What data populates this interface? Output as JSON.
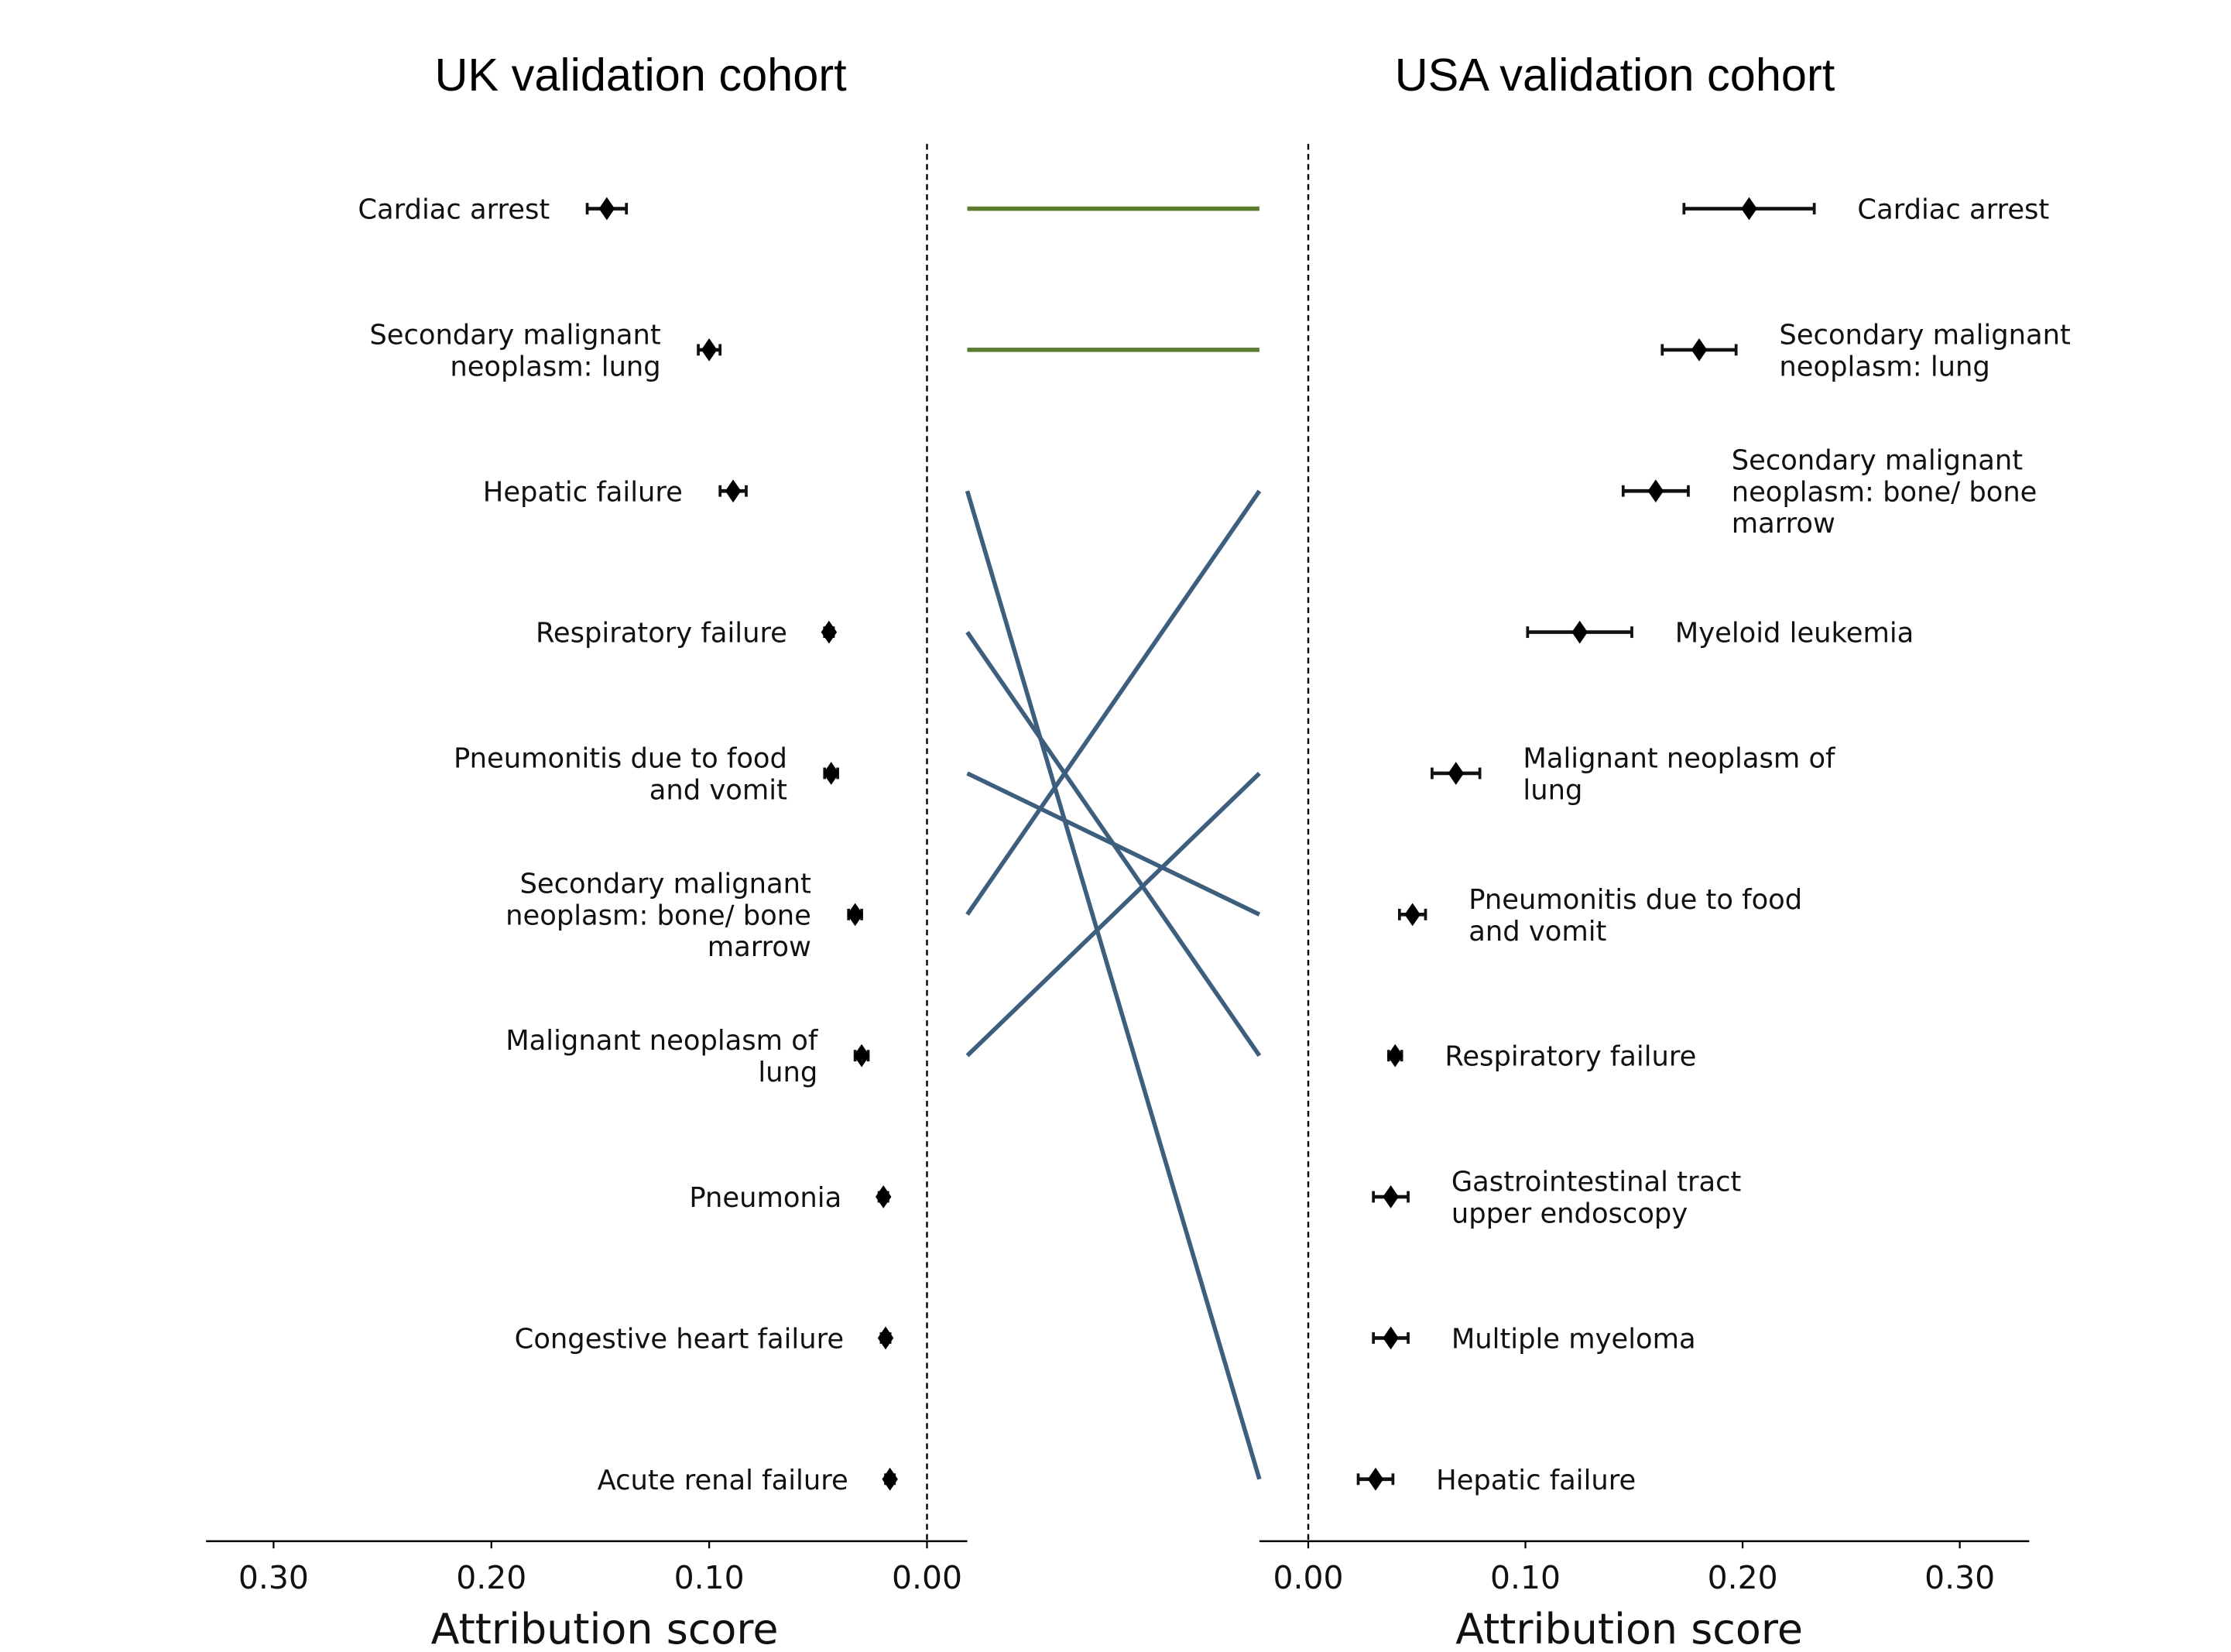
{
  "chart_data": [
    {
      "type": "scatter",
      "title": "UK validation cohort",
      "xlabel": "Attribution score",
      "xlim": [
        0.331,
        -0.0185
      ],
      "x_inverted": true,
      "xticks": [
        "0.30",
        "0.20",
        "0.10",
        "0.00"
      ],
      "xtick_values": [
        0.3,
        0.2,
        0.1,
        0.0
      ],
      "reference_line": 0.0,
      "grid": false,
      "categories": [
        "Cardiac arrest",
        "Secondary malignant\nneoplasm: lung",
        "Hepatic failure",
        "Respiratory failure",
        "Pneumonitis due to food\nand vomit",
        "Secondary malignant\nneoplasm: bone/ bone\nmarrow",
        "Malignant neoplasm of\nlung",
        "Pneumonia",
        "Congestive heart failure",
        "Acute renal failure"
      ],
      "values": [
        0.147,
        0.1,
        0.089,
        0.045,
        0.044,
        0.033,
        0.03,
        0.02,
        0.019,
        0.017
      ],
      "errors": [
        0.009,
        0.005,
        0.006,
        0.002,
        0.003,
        0.003,
        0.003,
        0.002,
        0.002,
        0.002
      ]
    },
    {
      "type": "scatter",
      "title": "USA validation cohort",
      "xlabel": "Attribution score",
      "xlim": [
        -0.0225,
        0.332
      ],
      "xticks": [
        "0.00",
        "0.10",
        "0.20",
        "0.30"
      ],
      "xtick_values": [
        0.0,
        0.1,
        0.2,
        0.3
      ],
      "reference_line": 0.0,
      "grid": false,
      "categories": [
        "Cardiac arrest",
        "Secondary malignant\nneoplasm: lung",
        "Secondary malignant\nneoplasm: bone/ bone\nmarrow",
        "Myeloid leukemia",
        "Malignant neoplasm of\nlung",
        "Pneumonitis due to food\nand vomit",
        "Respiratory failure",
        "Gastrointestinal tract\nupper endoscopy",
        "Multiple myeloma",
        "Hepatic failure"
      ],
      "values": [
        0.203,
        0.18,
        0.16,
        0.125,
        0.068,
        0.048,
        0.04,
        0.038,
        0.038,
        0.031
      ],
      "errors": [
        0.03,
        0.017,
        0.015,
        0.024,
        0.011,
        0.006,
        0.003,
        0.008,
        0.008,
        0.008
      ]
    }
  ],
  "connections": [
    {
      "from_rank": 0,
      "to_rank": 0,
      "color": "#5b7b2f"
    },
    {
      "from_rank": 1,
      "to_rank": 1,
      "color": "#5b7b2f"
    },
    {
      "from_rank": 2,
      "to_rank": 9,
      "color": "#3d5f7d"
    },
    {
      "from_rank": 3,
      "to_rank": 6,
      "color": "#3d5f7d"
    },
    {
      "from_rank": 4,
      "to_rank": 5,
      "color": "#3d5f7d"
    },
    {
      "from_rank": 5,
      "to_rank": 2,
      "color": "#3d5f7d"
    },
    {
      "from_rank": 6,
      "to_rank": 4,
      "color": "#3d5f7d"
    }
  ]
}
